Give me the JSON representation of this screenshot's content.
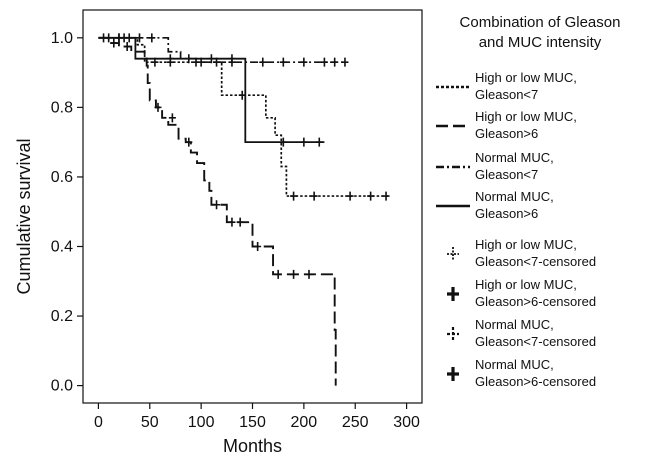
{
  "chart_data": {
    "type": "line",
    "subtype": "kaplan-meier",
    "xlabel": "Months",
    "ylabel": "Cumulative survival",
    "xlim": [
      -15,
      315
    ],
    "ylim": [
      -0.05,
      1.08
    ],
    "x_ticks": [
      0,
      50,
      100,
      150,
      200,
      250,
      300
    ],
    "y_ticks": [
      0.0,
      0.2,
      0.4,
      0.6,
      0.8,
      1.0
    ],
    "x_tick_labels": [
      "0",
      "50",
      "100",
      "150",
      "200",
      "250",
      "300"
    ],
    "y_tick_labels": [
      "0.0",
      "0.2",
      "0.4",
      "0.6",
      "0.8",
      "1.0"
    ],
    "grid": false,
    "legend_title": [
      "Combination of Gleason",
      "and MUC intensity"
    ],
    "legend_position": "right",
    "series": [
      {
        "name": "High or low MUC, Gleason<7",
        "legend_lines": [
          "High or low MUC,",
          "Gleason<7"
        ],
        "style": "dotted",
        "steps": [
          [
            0,
            1.0
          ],
          [
            38,
            0.98
          ],
          [
            45,
            0.93
          ],
          [
            105,
            0.93
          ],
          [
            120,
            0.835
          ],
          [
            160,
            0.835
          ],
          [
            163,
            0.77
          ],
          [
            172,
            0.72
          ],
          [
            178,
            0.63
          ],
          [
            183,
            0.545
          ],
          [
            282,
            0.545
          ]
        ],
        "censored": [
          [
            20,
            1.0
          ],
          [
            30,
            1.0
          ],
          [
            55,
            0.93
          ],
          [
            70,
            0.93
          ],
          [
            95,
            0.93
          ],
          [
            140,
            0.835
          ],
          [
            190,
            0.545
          ],
          [
            210,
            0.545
          ],
          [
            245,
            0.545
          ],
          [
            265,
            0.545
          ],
          [
            280,
            0.545
          ]
        ]
      },
      {
        "name": "High or low MUC, Gleason>6",
        "legend_lines": [
          "High or low MUC,",
          "Gleason>6"
        ],
        "style": "long-dash",
        "steps": [
          [
            0,
            1.0
          ],
          [
            10,
            0.985
          ],
          [
            20,
            0.975
          ],
          [
            32,
            0.96
          ],
          [
            45,
            0.95
          ],
          [
            47,
            0.92
          ],
          [
            48,
            0.87
          ],
          [
            50,
            0.82
          ],
          [
            56,
            0.8
          ],
          [
            62,
            0.77
          ],
          [
            68,
            0.75
          ],
          [
            78,
            0.71
          ],
          [
            85,
            0.7
          ],
          [
            90,
            0.67
          ],
          [
            96,
            0.64
          ],
          [
            103,
            0.59
          ],
          [
            108,
            0.56
          ],
          [
            110,
            0.52
          ],
          [
            120,
            0.52
          ],
          [
            125,
            0.47
          ],
          [
            142,
            0.47
          ],
          [
            150,
            0.4
          ],
          [
            165,
            0.4
          ],
          [
            170,
            0.32
          ],
          [
            230,
            0.32
          ],
          [
            230,
            0.16
          ],
          [
            231,
            0.0
          ]
        ],
        "censored": [
          [
            5,
            1.0
          ],
          [
            15,
            0.985
          ],
          [
            28,
            0.975
          ],
          [
            58,
            0.8
          ],
          [
            72,
            0.77
          ],
          [
            88,
            0.7
          ],
          [
            115,
            0.52
          ],
          [
            130,
            0.47
          ],
          [
            138,
            0.47
          ],
          [
            155,
            0.4
          ],
          [
            175,
            0.32
          ],
          [
            190,
            0.32
          ],
          [
            205,
            0.32
          ]
        ]
      },
      {
        "name": "Normal MUC, Gleason<7",
        "legend_lines": [
          "Normal MUC,",
          "Gleason<7"
        ],
        "style": "dash-dot",
        "steps": [
          [
            0,
            1.0
          ],
          [
            60,
            1.0
          ],
          [
            68,
            0.96
          ],
          [
            80,
            0.94
          ],
          [
            95,
            0.93
          ],
          [
            240,
            0.93
          ]
        ],
        "censored": [
          [
            10,
            1.0
          ],
          [
            25,
            1.0
          ],
          [
            40,
            1.0
          ],
          [
            52,
            1.0
          ],
          [
            100,
            0.93
          ],
          [
            115,
            0.93
          ],
          [
            130,
            0.93
          ],
          [
            160,
            0.93
          ],
          [
            180,
            0.93
          ],
          [
            200,
            0.93
          ],
          [
            220,
            0.93
          ],
          [
            230,
            0.93
          ],
          [
            240,
            0.93
          ]
        ]
      },
      {
        "name": "Normal MUC, Gleason>6",
        "legend_lines": [
          "Normal MUC,",
          "Gleason>6"
        ],
        "style": "solid",
        "steps": [
          [
            0,
            1.0
          ],
          [
            35,
            1.0
          ],
          [
            36,
            0.94
          ],
          [
            143,
            0.94
          ],
          [
            143,
            0.7
          ],
          [
            220,
            0.7
          ]
        ],
        "censored": [
          [
            20,
            1.0
          ],
          [
            70,
            0.94
          ],
          [
            88,
            0.94
          ],
          [
            110,
            0.94
          ],
          [
            130,
            0.94
          ],
          [
            180,
            0.7
          ],
          [
            200,
            0.7
          ],
          [
            215,
            0.7
          ]
        ]
      }
    ],
    "censor_legend": [
      {
        "name": "High or low MUC, Gleason<7-censored",
        "legend_lines": [
          "High or low MUC,",
          "Gleason<7-censored"
        ],
        "marker": "dotted-cross"
      },
      {
        "name": "High or low MUC, Gleason>6-censored",
        "legend_lines": [
          "High or low MUC,",
          "Gleason>6-censored"
        ],
        "marker": "bold-cross"
      },
      {
        "name": "Normal MUC, Gleason<7-censored",
        "legend_lines": [
          "Normal MUC,",
          "Gleason<7-censored"
        ],
        "marker": "dashed-cross"
      },
      {
        "name": "Normal MUC, Gleason>6-censored",
        "legend_lines": [
          "Normal MUC,",
          "Gleason>6-censored"
        ],
        "marker": "solid-cross"
      }
    ]
  }
}
